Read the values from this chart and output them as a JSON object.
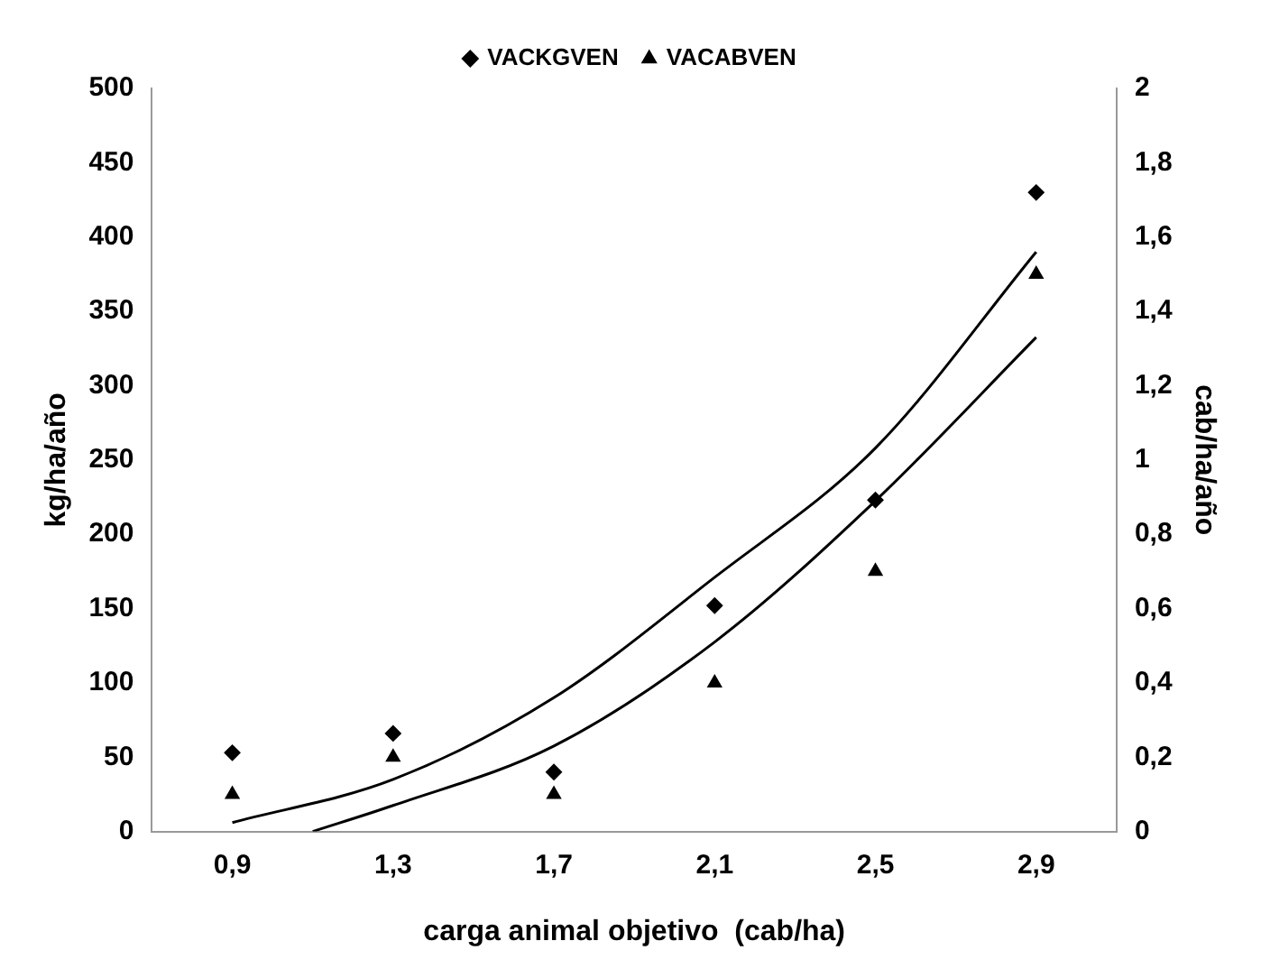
{
  "chart_data": {
    "type": "scatter",
    "xlabel": "carga animal objetivo  (cab/ha)",
    "ylabel": "kg/ha/año",
    "y2label": "cab/ha/año",
    "x": [
      0.9,
      1.3,
      1.7,
      2.1,
      2.5,
      2.9
    ],
    "xlim": [
      0.7,
      3.1
    ],
    "xticks": [
      {
        "value": 0.9,
        "label": "0,9"
      },
      {
        "value": 1.3,
        "label": "1,3"
      },
      {
        "value": 1.7,
        "label": "1,7"
      },
      {
        "value": 2.1,
        "label": "2,1"
      },
      {
        "value": 2.5,
        "label": "2,5"
      },
      {
        "value": 2.9,
        "label": "2,9"
      }
    ],
    "ylim": [
      0,
      500
    ],
    "yticks": [
      0,
      50,
      100,
      150,
      200,
      250,
      300,
      350,
      400,
      450,
      500
    ],
    "y2lim": [
      0,
      2
    ],
    "y2ticks": [
      0,
      {
        "value": 0.2,
        "label": "0,2"
      },
      {
        "value": 0.4,
        "label": "0,4"
      },
      {
        "value": 0.6,
        "label": "0,6"
      },
      {
        "value": 0.8,
        "label": "0,8"
      },
      1,
      {
        "value": 1.2,
        "label": "1,2"
      },
      {
        "value": 1.4,
        "label": "1,4"
      },
      {
        "value": 1.6,
        "label": "1,6"
      },
      {
        "value": 1.8,
        "label": "1,8"
      },
      2
    ],
    "grid": false,
    "legend": "top",
    "series": [
      {
        "name": "VACKGVEN",
        "color": "#000000",
        "marker": "diamond",
        "values": [
          53,
          66,
          40,
          152,
          223,
          430
        ]
      },
      {
        "name": "VACABVEN",
        "color": "#000000",
        "marker": "triangle",
        "axis": "y2",
        "values": [
          0.1,
          0.2,
          0.1,
          0.4,
          0.7,
          1.5
        ]
      },
      {
        "type": "line",
        "color": "#000000",
        "marker": "none",
        "x": [
          0.9,
          1.3,
          1.7,
          2.1,
          2.5,
          2.9
        ],
        "values": [
          6,
          35,
          90,
          171,
          258,
          390
        ]
      },
      {
        "type": "line",
        "color": "#000000",
        "marker": "none",
        "axis": "y2",
        "x": [
          1.1,
          1.3,
          1.7,
          2.1,
          2.5,
          2.9
        ],
        "values": [
          0,
          0.07,
          0.23,
          0.51,
          0.89,
          1.33
        ]
      }
    ]
  }
}
